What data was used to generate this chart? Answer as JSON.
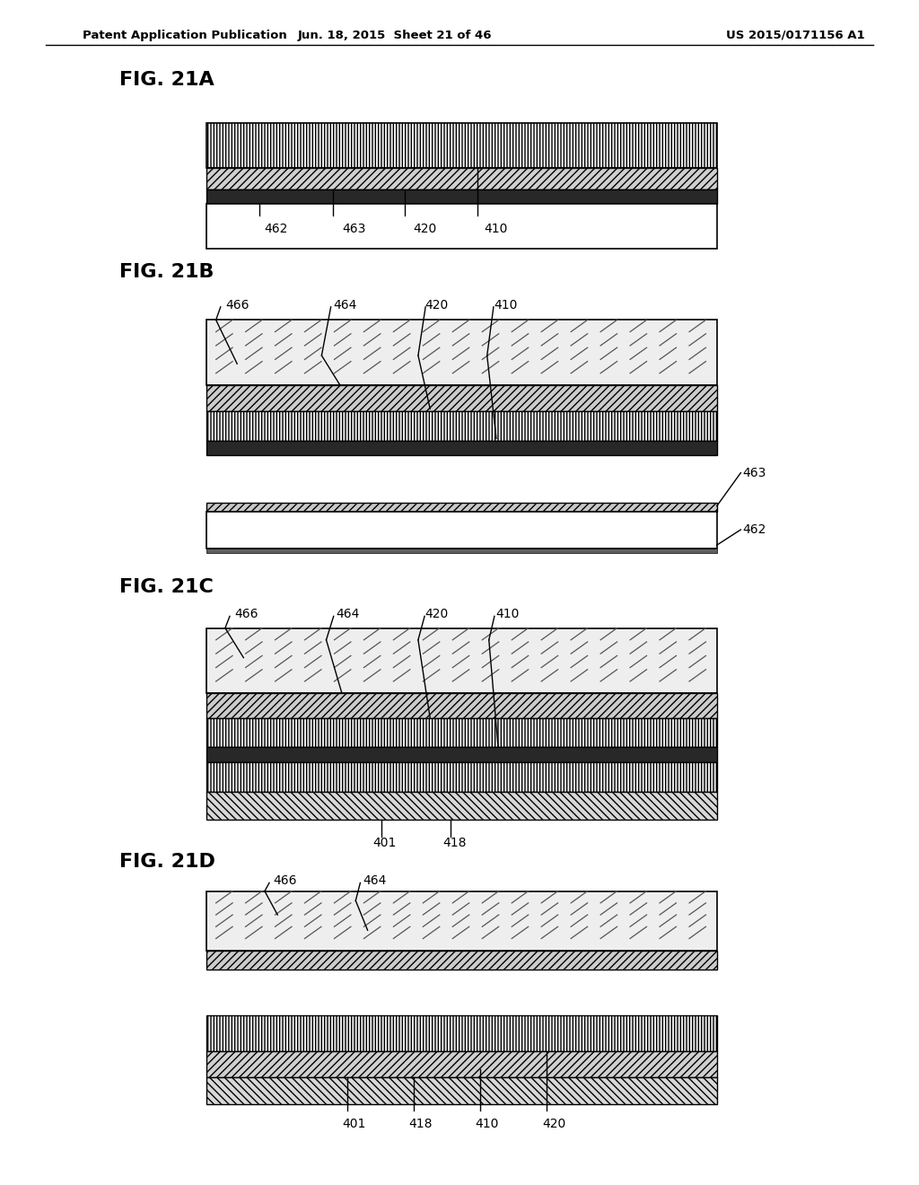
{
  "bg_color": "#ffffff",
  "header_left": "Patent Application Publication",
  "header_mid": "Jun. 18, 2015  Sheet 21 of 46",
  "header_right": "US 2015/0171156 A1"
}
